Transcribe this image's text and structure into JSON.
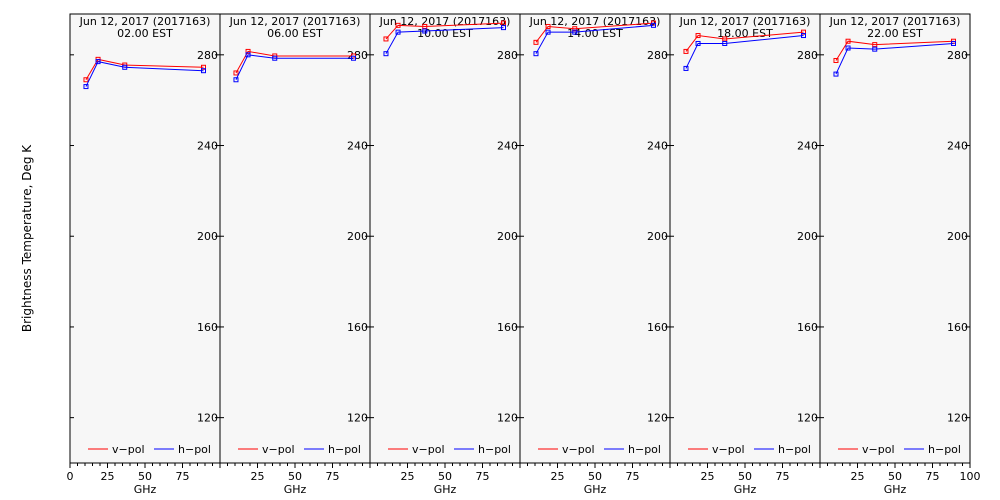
{
  "chart_data": {
    "type": "line",
    "ylabel": "Brightness Temperature, Deg K",
    "xlabel": "GHz",
    "xlim": [
      0,
      100
    ],
    "ylim": [
      100,
      298
    ],
    "xticks": [
      0,
      25,
      50,
      75,
      100
    ],
    "yticks": [
      120,
      160,
      200,
      240,
      280
    ],
    "legend": [
      {
        "name": "v-pol",
        "color": "#ff0000"
      },
      {
        "name": "h-pol",
        "color": "#0000ff"
      }
    ],
    "legend_labels": {
      "v": "v−pol",
      "h": "h−pol"
    },
    "x": [
      10.65,
      18.7,
      36.5,
      89.0
    ],
    "panels": [
      {
        "date": "Jun 12, 2017 (2017163)",
        "time": "02.00 EST",
        "series": [
          {
            "name": "v-pol",
            "color": "#ff0000",
            "values": [
              269,
              278,
              275.5,
              274.5
            ]
          },
          {
            "name": "h-pol",
            "color": "#0000ff",
            "values": [
              266,
              277,
              274.5,
              273
            ]
          }
        ]
      },
      {
        "date": "Jun 12, 2017 (2017163)",
        "time": "06.00 EST",
        "series": [
          {
            "name": "v-pol",
            "color": "#ff0000",
            "values": [
              272,
              281.5,
              279.5,
              279.5
            ]
          },
          {
            "name": "h-pol",
            "color": "#0000ff",
            "values": [
              269,
              280,
              278.5,
              278.5
            ]
          }
        ]
      },
      {
        "date": "Jun 12, 2017 (2017163)",
        "time": "10.00 EST",
        "series": [
          {
            "name": "v-pol",
            "color": "#ff0000",
            "values": [
              287,
              293,
              292.5,
              294
            ]
          },
          {
            "name": "h-pol",
            "color": "#0000ff",
            "values": [
              280.5,
              290,
              290.5,
              292
            ]
          }
        ]
      },
      {
        "date": "Jun 12, 2017 (2017163)",
        "time": "14.00 EST",
        "series": [
          {
            "name": "v-pol",
            "color": "#ff0000",
            "values": [
              285.5,
              292.5,
              291.5,
              294
            ]
          },
          {
            "name": "h-pol",
            "color": "#0000ff",
            "values": [
              280.5,
              290,
              290,
              293
            ]
          }
        ]
      },
      {
        "date": "Jun 12, 2017 (2017163)",
        "time": "18.00 EST",
        "series": [
          {
            "name": "v-pol",
            "color": "#ff0000",
            "values": [
              281.5,
              288.5,
              287,
              290
            ]
          },
          {
            "name": "h-pol",
            "color": "#0000ff",
            "values": [
              274,
              285,
              285,
              288.5
            ]
          }
        ]
      },
      {
        "date": "Jun 12, 2017 (2017163)",
        "time": "22.00 EST",
        "series": [
          {
            "name": "v-pol",
            "color": "#ff0000",
            "values": [
              277.5,
              286,
              284.5,
              286
            ]
          },
          {
            "name": "h-pol",
            "color": "#0000ff",
            "values": [
              271.5,
              283,
              282.5,
              285
            ]
          }
        ]
      }
    ]
  }
}
